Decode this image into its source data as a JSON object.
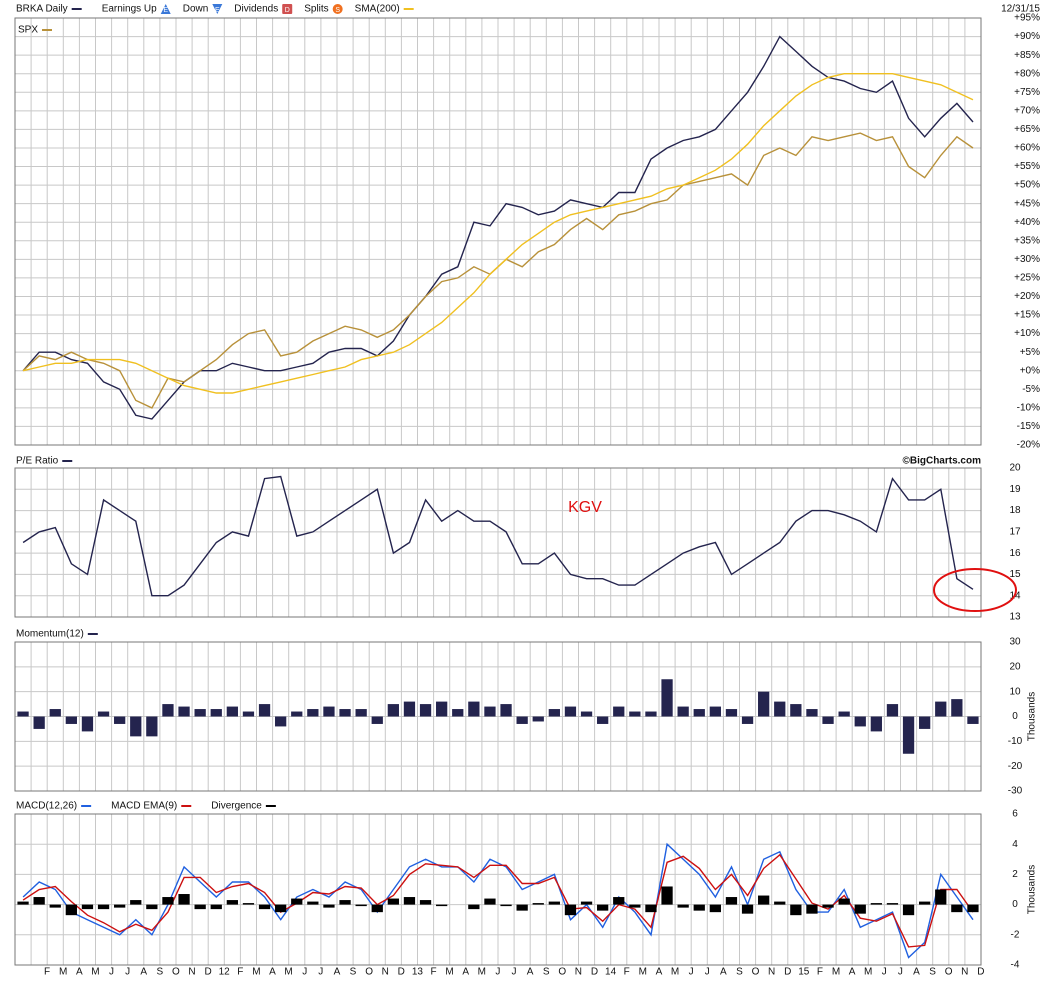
{
  "chart_data": [
    {
      "type": "line",
      "date": "12/31/15",
      "events": [
        {
          "name": "Earnings Up",
          "symbol": "E",
          "color": "#3a78d8"
        },
        {
          "name": "Down",
          "symbol": "E",
          "color": "#3a78d8"
        },
        {
          "name": "Dividends",
          "symbol": "D",
          "color": "#d05050"
        },
        {
          "name": "Splits",
          "symbol": "S",
          "color": "#f07020"
        }
      ],
      "series": [
        {
          "name": "BRKA Daily",
          "color": "#24244e",
          "values": [
            0,
            5,
            5,
            3,
            2,
            -3,
            -5,
            -12,
            -13,
            -8,
            -3,
            0,
            0,
            2,
            1,
            0,
            0,
            1,
            2,
            5,
            6,
            6,
            4,
            8,
            15,
            20,
            26,
            28,
            40,
            39,
            45,
            44,
            42,
            43,
            46,
            45,
            44,
            48,
            48,
            57,
            60,
            62,
            63,
            65,
            70,
            75,
            82,
            90,
            86,
            82,
            79,
            78,
            76,
            75,
            78,
            68,
            63,
            68,
            72,
            67
          ]
        },
        {
          "name": "SPX",
          "color": "#b8913a",
          "values": [
            0,
            4,
            3,
            5,
            3,
            2,
            0,
            -8,
            -10,
            -2,
            -3,
            0,
            3,
            7,
            10,
            11,
            4,
            5,
            8,
            10,
            12,
            11,
            9,
            11,
            15,
            20,
            24,
            25,
            28,
            26,
            30,
            28,
            32,
            34,
            38,
            41,
            38,
            42,
            43,
            45,
            46,
            50,
            51,
            52,
            53,
            50,
            58,
            60,
            58,
            63,
            62,
            63,
            64,
            62,
            63,
            55,
            52,
            58,
            63,
            60
          ]
        },
        {
          "name": "SMA(200)",
          "color": "#f0c020",
          "values": [
            0,
            1,
            2,
            2,
            3,
            3,
            3,
            2,
            0,
            -2,
            -4,
            -5,
            -6,
            -6,
            -5,
            -4,
            -3,
            -2,
            -1,
            0,
            1,
            3,
            4,
            5,
            7,
            10,
            13,
            17,
            21,
            26,
            30,
            34,
            37,
            40,
            42,
            43,
            44,
            45,
            46,
            47,
            49,
            50,
            52,
            54,
            57,
            61,
            66,
            70,
            74,
            77,
            79,
            80,
            80,
            80,
            80,
            79,
            78,
            77,
            75,
            73
          ]
        }
      ],
      "ylim": [
        -20,
        95
      ],
      "yticks": [
        {
          "value": 95,
          "label": "+95%"
        },
        {
          "value": 90,
          "label": "+90%"
        },
        {
          "value": 85,
          "label": "+85%"
        },
        {
          "value": 80,
          "label": "+80%"
        },
        {
          "value": 75,
          "label": "+75%"
        },
        {
          "value": 70,
          "label": "+70%"
        },
        {
          "value": 65,
          "label": "+65%"
        },
        {
          "value": 60,
          "label": "+60%"
        },
        {
          "value": 55,
          "label": "+55%"
        },
        {
          "value": 50,
          "label": "+50%"
        },
        {
          "value": 45,
          "label": "+45%"
        },
        {
          "value": 40,
          "label": "+40%"
        },
        {
          "value": 35,
          "label": "+35%"
        },
        {
          "value": 30,
          "label": "+30%"
        },
        {
          "value": 25,
          "label": "+25%"
        },
        {
          "value": 20,
          "label": "+20%"
        },
        {
          "value": 15,
          "label": "+15%"
        },
        {
          "value": 10,
          "label": "+10%"
        },
        {
          "value": 5,
          "label": "+5%"
        },
        {
          "value": 0,
          "label": "+0%"
        },
        {
          "value": -5,
          "label": "-5%"
        },
        {
          "value": -10,
          "label": "-10%"
        },
        {
          "value": -15,
          "label": "-15%"
        },
        {
          "value": -20,
          "label": "-20%"
        }
      ],
      "grid": true
    },
    {
      "type": "line",
      "source": "©BigCharts.com",
      "annotation": "KGV",
      "series": [
        {
          "name": "P/E Ratio",
          "color": "#24244e",
          "values": [
            16.5,
            17,
            17.2,
            15.5,
            15,
            18.5,
            18,
            17.5,
            14,
            14,
            14.5,
            15.5,
            16.5,
            17,
            16.8,
            19.5,
            19.6,
            16.8,
            17,
            17.5,
            18,
            18.5,
            19,
            16,
            16.5,
            18.5,
            17.5,
            18,
            17.5,
            17.5,
            17,
            15.5,
            15.5,
            16,
            15,
            14.8,
            14.8,
            14.5,
            14.5,
            15,
            15.5,
            16,
            16.3,
            16.5,
            15,
            15.5,
            16,
            16.5,
            17.5,
            18,
            18,
            17.8,
            17.5,
            17,
            19.5,
            18.5,
            18.5,
            19,
            14.8,
            14.3
          ]
        }
      ],
      "ylim": [
        13,
        20
      ],
      "yticks": [
        20,
        19,
        18,
        17,
        16,
        15,
        14,
        13
      ],
      "grid": true
    },
    {
      "type": "bar",
      "y_label": "Thousands",
      "series": [
        {
          "name": "Momentum(12)",
          "color": "#24244e",
          "values": [
            2,
            -5,
            3,
            -3,
            -6,
            2,
            -3,
            -8,
            -8,
            5,
            4,
            3,
            3,
            4,
            2,
            5,
            -4,
            2,
            3,
            4,
            3,
            3,
            -3,
            5,
            6,
            5,
            6,
            3,
            6,
            4,
            5,
            -3,
            -2,
            3,
            4,
            2,
            -3,
            4,
            2,
            2,
            15,
            4,
            3,
            4,
            3,
            -3,
            10,
            6,
            5,
            3,
            -3,
            2,
            -4,
            -6,
            5,
            -15,
            -5,
            6,
            7,
            -3
          ]
        }
      ],
      "ylim": [
        -30,
        30
      ],
      "yticks": [
        30,
        20,
        10,
        0,
        -10,
        -20,
        -30
      ],
      "grid": true
    },
    {
      "type": "line",
      "y_label": "Thousands",
      "categories": [
        null,
        "F",
        "M",
        "A",
        "M",
        "J",
        "J",
        "A",
        "S",
        "O",
        "N",
        "D",
        "12",
        "F",
        "M",
        "A",
        "M",
        "J",
        "J",
        "A",
        "S",
        "O",
        "N",
        "D",
        "13",
        "F",
        "M",
        "A",
        "M",
        "J",
        "J",
        "A",
        "S",
        "O",
        "N",
        "D",
        "14",
        "F",
        "M",
        "A",
        "M",
        "J",
        "J",
        "A",
        "S",
        "O",
        "N",
        "D",
        "15",
        "F",
        "M",
        "A",
        "M",
        "J",
        "J",
        "A",
        "S",
        "O",
        "N",
        "D"
      ],
      "series": [
        {
          "name": "MACD(12,26)",
          "color": "#2060e0",
          "values": [
            0.5,
            1.5,
            1,
            -0.5,
            -1,
            -1.5,
            -2,
            -1,
            -2,
            0,
            2.5,
            1.5,
            0.5,
            1.5,
            1.5,
            0.5,
            -1,
            0.5,
            1,
            0.5,
            1.5,
            1,
            -0.5,
            1,
            2.5,
            3,
            2.5,
            2.5,
            1.5,
            3,
            2.5,
            1,
            1.5,
            2,
            -1,
            0,
            -1.5,
            0.5,
            -0.5,
            -2,
            4,
            3,
            2,
            0.5,
            2.5,
            0,
            3,
            3.5,
            1,
            -0.5,
            -0.5,
            1,
            -1.5,
            -1,
            -0.5,
            -3.5,
            -2.5,
            2,
            0.5,
            -1
          ]
        },
        {
          "name": "MACD EMA(9)",
          "color": "#cc1010",
          "values": [
            0.3,
            1.0,
            1.2,
            0.2,
            -0.7,
            -1.2,
            -1.8,
            -1.3,
            -1.7,
            -0.5,
            1.8,
            1.8,
            0.8,
            1.2,
            1.4,
            0.8,
            -0.5,
            0.1,
            0.8,
            0.7,
            1.2,
            1.1,
            0,
            0.6,
            2.0,
            2.7,
            2.6,
            2.5,
            1.8,
            2.6,
            2.6,
            1.4,
            1.4,
            1.8,
            -0.3,
            -0.2,
            -1.1,
            0,
            -0.3,
            -1.5,
            2.8,
            3.2,
            2.4,
            1.0,
            2.0,
            0.6,
            2.4,
            3.3,
            1.7,
            0.1,
            -0.3,
            0.6,
            -0.9,
            -1.1,
            -0.6,
            -2.8,
            -2.7,
            1.0,
            1.0,
            -0.5
          ]
        },
        {
          "name": "Divergence",
          "color": "#000000",
          "type": "bar",
          "values": [
            0.2,
            0.5,
            -0.2,
            -0.7,
            -0.3,
            -0.3,
            -0.2,
            0.3,
            -0.3,
            0.5,
            0.7,
            -0.3,
            -0.3,
            0.3,
            0.1,
            -0.3,
            -0.5,
            0.4,
            0.2,
            -0.2,
            0.3,
            -0.1,
            -0.5,
            0.4,
            0.5,
            0.3,
            -0.1,
            0,
            -0.3,
            0.4,
            -0.1,
            -0.4,
            0.1,
            0.2,
            -0.7,
            0.2,
            -0.4,
            0.5,
            -0.2,
            -0.5,
            1.2,
            -0.2,
            -0.4,
            -0.5,
            0.5,
            -0.6,
            0.6,
            0.2,
            -0.7,
            -0.6,
            -0.2,
            0.4,
            -0.6,
            0.1,
            0.1,
            -0.7,
            0.2,
            1.0,
            -0.5,
            -0.5
          ]
        }
      ],
      "ylim": [
        -4,
        6
      ],
      "yticks": [
        6,
        4,
        2,
        0,
        -2,
        -4
      ],
      "grid": true
    }
  ]
}
